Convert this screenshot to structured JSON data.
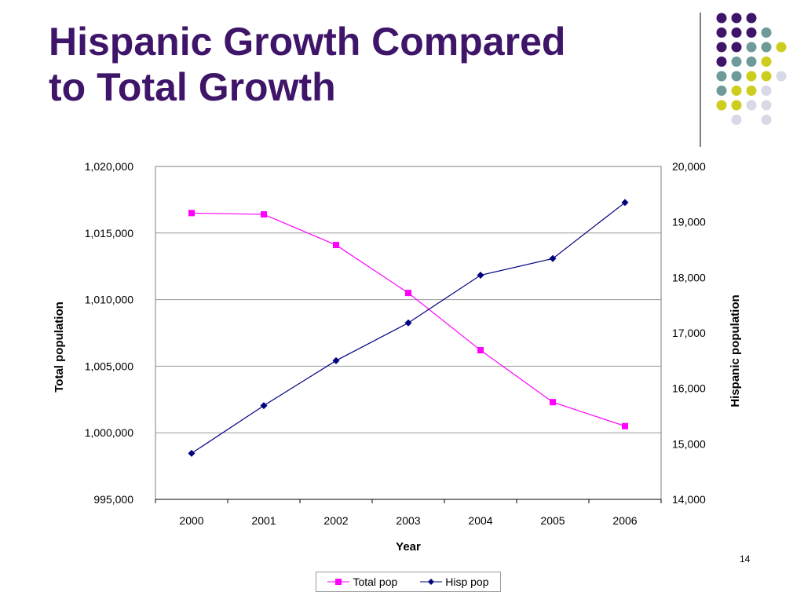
{
  "slide": {
    "title_line1": "Hispanic Growth Compared",
    "title_line2": "to Total Growth",
    "slide_number": "14",
    "accent_colors": [
      "#3f1569",
      "#6e9a9a",
      "#cdcd1e",
      "#d8d8e6"
    ]
  },
  "chart_data": {
    "type": "line",
    "title": "",
    "categories": [
      "2000",
      "2001",
      "2002",
      "2003",
      "2004",
      "2005",
      "2006"
    ],
    "xlabel": "Year",
    "ylabel": "Total population",
    "y2label": "Hispanic population",
    "ylim": [
      995000,
      1020000
    ],
    "y2lim": [
      14000,
      20000
    ],
    "yticks": [
      "995,000",
      "1,000,000",
      "1,005,000",
      "1,010,000",
      "1,015,000",
      "1,020,000"
    ],
    "y2ticks": [
      "14,000",
      "15,000",
      "16,000",
      "17,000",
      "18,000",
      "19,000",
      "20,000"
    ],
    "grid": true,
    "legend_position": "bottom",
    "series": [
      {
        "name": "Total pop",
        "axis": "left",
        "color": "#ff00ff",
        "marker": "square",
        "values": [
          1016500,
          1016400,
          1014100,
          1010500,
          1006200,
          1002300,
          1000500
        ]
      },
      {
        "name": "Hisp pop",
        "axis": "right",
        "color": "#000080",
        "marker": "diamond",
        "values": [
          14830,
          15690,
          16500,
          17180,
          18040,
          18340,
          19350
        ]
      }
    ]
  }
}
